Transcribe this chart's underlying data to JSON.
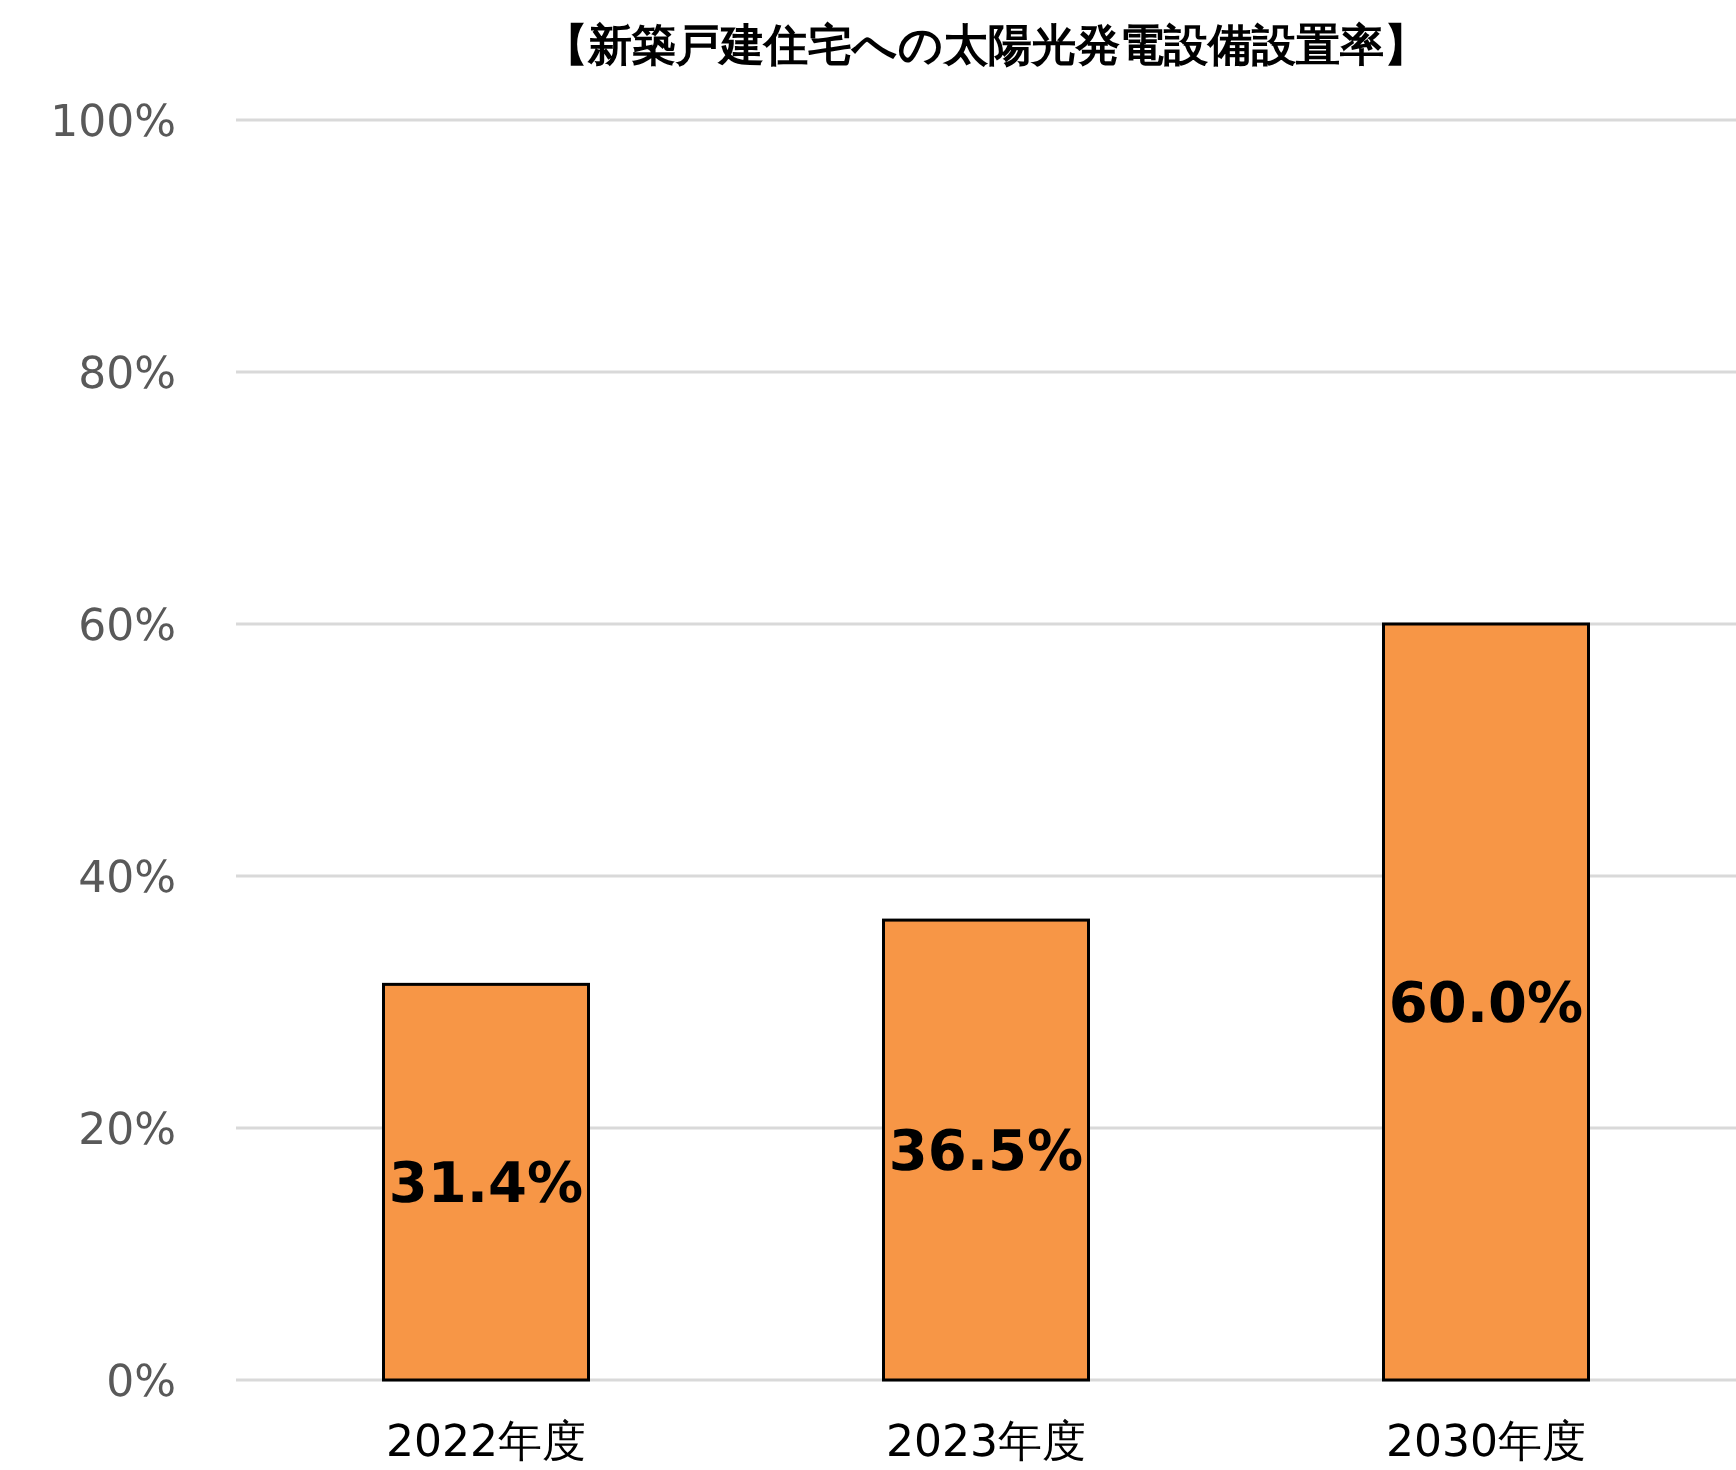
{
  "chart_data": {
    "type": "bar",
    "title": "【新築戸建住宅への太陽光発電設備設置率】",
    "categories": [
      "2022年度",
      "2023年度",
      "2030年度"
    ],
    "values": [
      31.4,
      36.5,
      60.0
    ],
    "color": "#f79646",
    "value_labels": [
      "31.4%",
      "36.5%",
      "60.0%"
    ],
    "ylim": [
      0,
      100
    ],
    "yticks": [
      {
        "value": 0,
        "label": "0%"
      },
      {
        "value": 20,
        "label": "20%"
      },
      {
        "value": 40,
        "label": "40%"
      },
      {
        "value": 60,
        "label": "60%"
      },
      {
        "value": 80,
        "label": "80%"
      },
      {
        "value": 100,
        "label": "100%"
      }
    ],
    "grid": "y"
  }
}
